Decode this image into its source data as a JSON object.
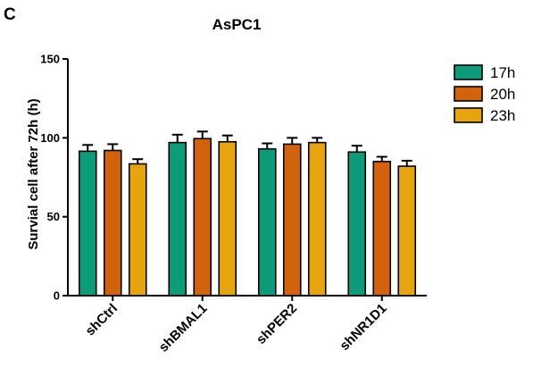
{
  "panel_letter": "C",
  "chart_data": {
    "type": "bar",
    "title": "AsPC1",
    "xlabel": "",
    "ylabel": "Survial cell after 72h (h)",
    "ylim": [
      0,
      150
    ],
    "yticks": [
      0,
      50,
      100,
      150
    ],
    "grid": false,
    "legend_position": "top-right",
    "categories": [
      "shCtrl",
      "shBMAL1",
      "shPER2",
      "shNR1D1"
    ],
    "series": [
      {
        "name": "17h",
        "color": "#0e9b7a",
        "values": [
          91.5,
          97,
          93,
          91
        ],
        "errors": [
          4,
          5,
          3.5,
          4
        ]
      },
      {
        "name": "20h",
        "color": "#d2620c",
        "values": [
          92,
          99.5,
          96,
          85
        ],
        "errors": [
          4,
          4.5,
          4,
          3
        ]
      },
      {
        "name": "23h",
        "color": "#e6a50f",
        "values": [
          83.5,
          97.5,
          97,
          82
        ],
        "errors": [
          3,
          4,
          3,
          3.5
        ]
      }
    ]
  }
}
